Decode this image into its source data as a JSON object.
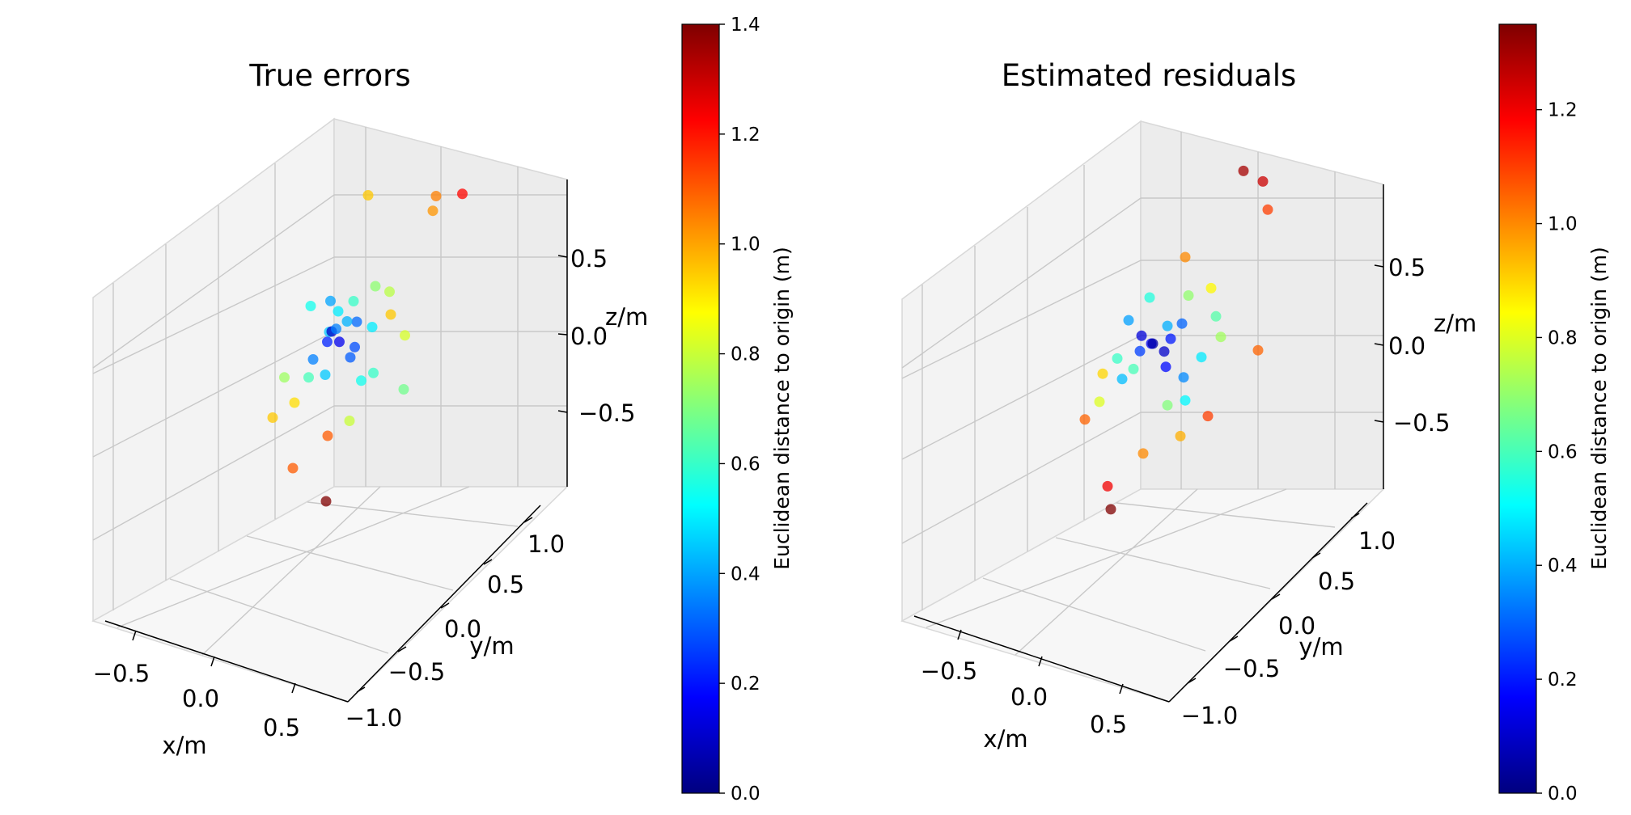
{
  "chart_data": [
    {
      "type": "scatter3d",
      "title": "True errors",
      "xlabel": "x/m",
      "ylabel": "y/m",
      "zlabel": "z/m",
      "x_ticks": [
        "−0.5",
        "0.0",
        "0.5"
      ],
      "y_ticks": [
        "−1.0",
        "−0.5",
        "0.0",
        "0.5",
        "1.0"
      ],
      "z_ticks": [
        "−0.5",
        "0.0",
        "0.5"
      ],
      "colorbar": {
        "label": "Euclidean distance to origin (m)",
        "range": [
          0.0,
          1.4
        ],
        "ticks": [
          "0.0",
          "0.2",
          "0.4",
          "0.6",
          "0.8",
          "1.0",
          "1.2",
          "1.4"
        ],
        "colormap": "jet"
      },
      "points": [
        {
          "x": 0.45,
          "y": 0.95,
          "z": 0.75,
          "d": 1.22
        },
        {
          "x": 0.3,
          "y": 0.9,
          "z": 0.7,
          "d": 1.05
        },
        {
          "x": 0.3,
          "y": 0.85,
          "z": 0.62,
          "d": 1.02
        },
        {
          "x": -0.1,
          "y": 0.8,
          "z": 0.6,
          "d": 0.95
        },
        {
          "x": 0.2,
          "y": 0.2,
          "z": 0.3,
          "d": 0.72
        },
        {
          "x": 0.25,
          "y": 0.3,
          "z": 0.25,
          "d": 0.78
        },
        {
          "x": 0.1,
          "y": 0.1,
          "z": 0.2,
          "d": 0.6
        },
        {
          "x": 0.3,
          "y": 0.2,
          "z": 0.15,
          "d": 0.95
        },
        {
          "x": 0.0,
          "y": 0.1,
          "z": 0.1,
          "d": 0.5
        },
        {
          "x": 0.1,
          "y": 0.0,
          "z": 0.1,
          "d": 0.42
        },
        {
          "x": 0.05,
          "y": -0.05,
          "z": 0.05,
          "d": 0.35
        },
        {
          "x": 0.0,
          "y": 0.0,
          "z": 0.0,
          "d": 0.1
        },
        {
          "x": 0.05,
          "y": 0.0,
          "z": -0.05,
          "d": 0.15
        },
        {
          "x": -0.05,
          "y": 0.05,
          "z": -0.1,
          "d": 0.22
        },
        {
          "x": 0.1,
          "y": 0.05,
          "z": -0.15,
          "d": 0.3
        },
        {
          "x": -0.1,
          "y": -0.05,
          "z": -0.2,
          "d": 0.35
        },
        {
          "x": 0.0,
          "y": -0.1,
          "z": -0.25,
          "d": 0.45
        },
        {
          "x": 0.15,
          "y": 0.1,
          "z": -0.3,
          "d": 0.55
        },
        {
          "x": -0.15,
          "y": 0.0,
          "z": -0.35,
          "d": 0.62
        },
        {
          "x": 0.2,
          "y": -0.2,
          "z": -0.45,
          "d": 0.8
        },
        {
          "x": -0.2,
          "y": -0.1,
          "z": -0.5,
          "d": 0.92
        },
        {
          "x": 0.1,
          "y": -0.3,
          "z": -0.55,
          "d": 1.1
        },
        {
          "x": -0.3,
          "y": -0.2,
          "z": -0.6,
          "d": 0.95
        },
        {
          "x": 0.3,
          "y": 0.4,
          "z": -0.4,
          "d": 0.68
        },
        {
          "x": -0.35,
          "y": 0.1,
          "z": -0.45,
          "d": 0.74
        },
        {
          "x": 0.0,
          "y": -0.6,
          "z": -0.7,
          "d": 1.1
        },
        {
          "x": 0.3,
          "y": -0.8,
          "z": -0.75,
          "d": 1.4
        },
        {
          "x": 0.1,
          "y": 0.15,
          "z": 0.05,
          "d": 0.32
        },
        {
          "x": -0.05,
          "y": 0.1,
          "z": 0.15,
          "d": 0.4
        },
        {
          "x": 0.15,
          "y": 0.0,
          "z": -0.05,
          "d": 0.28
        },
        {
          "x": -0.1,
          "y": 0.2,
          "z": -0.1,
          "d": 0.45
        },
        {
          "x": 0.2,
          "y": 0.15,
          "z": 0.05,
          "d": 0.5
        },
        {
          "x": 0.25,
          "y": 0.05,
          "z": -0.2,
          "d": 0.6
        },
        {
          "x": -0.2,
          "y": 0.15,
          "z": 0.05,
          "d": 0.55
        },
        {
          "x": 0.35,
          "y": 0.3,
          "z": 0.0,
          "d": 0.82
        }
      ]
    },
    {
      "type": "scatter3d",
      "title": "Estimated residuals",
      "xlabel": "x/m",
      "ylabel": "y/m",
      "zlabel": "z/m",
      "x_ticks": [
        "−0.5",
        "0.0",
        "0.5"
      ],
      "y_ticks": [
        "−1.0",
        "−0.5",
        "0.0",
        "0.5",
        "1.0"
      ],
      "z_ticks": [
        "−0.5",
        "0.0",
        "0.5"
      ],
      "colorbar": {
        "label": "Euclidean distance to origin (m)",
        "range": [
          0.0,
          1.35
        ],
        "ticks": [
          "0.0",
          "0.2",
          "0.4",
          "0.6",
          "0.8",
          "1.0",
          "1.2"
        ],
        "colormap": "jet"
      },
      "points": [
        {
          "x": 0.2,
          "y": 0.9,
          "z": 0.9,
          "d": 1.3
        },
        {
          "x": 0.3,
          "y": 0.95,
          "z": 0.85,
          "d": 1.25
        },
        {
          "x": 0.35,
          "y": 0.9,
          "z": 0.7,
          "d": 1.1
        },
        {
          "x": 0.0,
          "y": 0.5,
          "z": 0.4,
          "d": 1.0
        },
        {
          "x": 0.2,
          "y": 0.4,
          "z": 0.3,
          "d": 0.85
        },
        {
          "x": 0.1,
          "y": 0.3,
          "z": 0.25,
          "d": 0.7
        },
        {
          "x": -0.1,
          "y": 0.2,
          "z": 0.2,
          "d": 0.55
        },
        {
          "x": 0.05,
          "y": 0.1,
          "z": 0.1,
          "d": 0.4
        },
        {
          "x": 0.0,
          "y": 0.0,
          "z": 0.0,
          "d": 0.05
        },
        {
          "x": 0.05,
          "y": 0.05,
          "z": -0.05,
          "d": 0.1
        },
        {
          "x": -0.05,
          "y": -0.05,
          "z": 0.05,
          "d": 0.12
        },
        {
          "x": 0.1,
          "y": -0.05,
          "z": -0.1,
          "d": 0.18
        },
        {
          "x": -0.1,
          "y": 0.05,
          "z": -0.1,
          "d": 0.25
        },
        {
          "x": 0.15,
          "y": 0.1,
          "z": -0.2,
          "d": 0.35
        },
        {
          "x": -0.15,
          "y": -0.1,
          "z": -0.25,
          "d": 0.42
        },
        {
          "x": 0.2,
          "y": 0.0,
          "z": -0.3,
          "d": 0.5
        },
        {
          "x": -0.2,
          "y": 0.2,
          "z": -0.3,
          "d": 0.6
        },
        {
          "x": 0.3,
          "y": 0.3,
          "z": 0.05,
          "d": 0.72
        },
        {
          "x": -0.25,
          "y": -0.2,
          "z": -0.4,
          "d": 0.8
        },
        {
          "x": 0.25,
          "y": -0.2,
          "z": -0.45,
          "d": 0.95
        },
        {
          "x": -0.3,
          "y": -0.3,
          "z": -0.5,
          "d": 1.05
        },
        {
          "x": 0.1,
          "y": -0.4,
          "z": -0.55,
          "d": 1.0
        },
        {
          "x": 0.45,
          "y": 0.5,
          "z": -0.05,
          "d": 1.05
        },
        {
          "x": 0.3,
          "y": 0.1,
          "z": -0.4,
          "d": 1.1
        },
        {
          "x": -0.35,
          "y": 0.1,
          "z": -0.35,
          "d": 0.9
        },
        {
          "x": 0.0,
          "y": -0.7,
          "z": -0.7,
          "d": 1.2
        },
        {
          "x": 0.1,
          "y": -0.9,
          "z": -0.75,
          "d": 1.35
        },
        {
          "x": 0.05,
          "y": 0.15,
          "z": 0.0,
          "d": 0.2
        },
        {
          "x": -0.05,
          "y": 0.1,
          "z": -0.05,
          "d": 0.15
        },
        {
          "x": 0.1,
          "y": 0.2,
          "z": 0.1,
          "d": 0.3
        },
        {
          "x": -0.15,
          "y": 0.0,
          "z": 0.1,
          "d": 0.38
        },
        {
          "x": 0.2,
          "y": 0.25,
          "z": -0.1,
          "d": 0.48
        },
        {
          "x": 0.25,
          "y": 0.35,
          "z": 0.15,
          "d": 0.62
        },
        {
          "x": -0.2,
          "y": -0.05,
          "z": -0.15,
          "d": 0.58
        },
        {
          "x": 0.15,
          "y": -0.15,
          "z": -0.3,
          "d": 0.68
        }
      ]
    }
  ]
}
